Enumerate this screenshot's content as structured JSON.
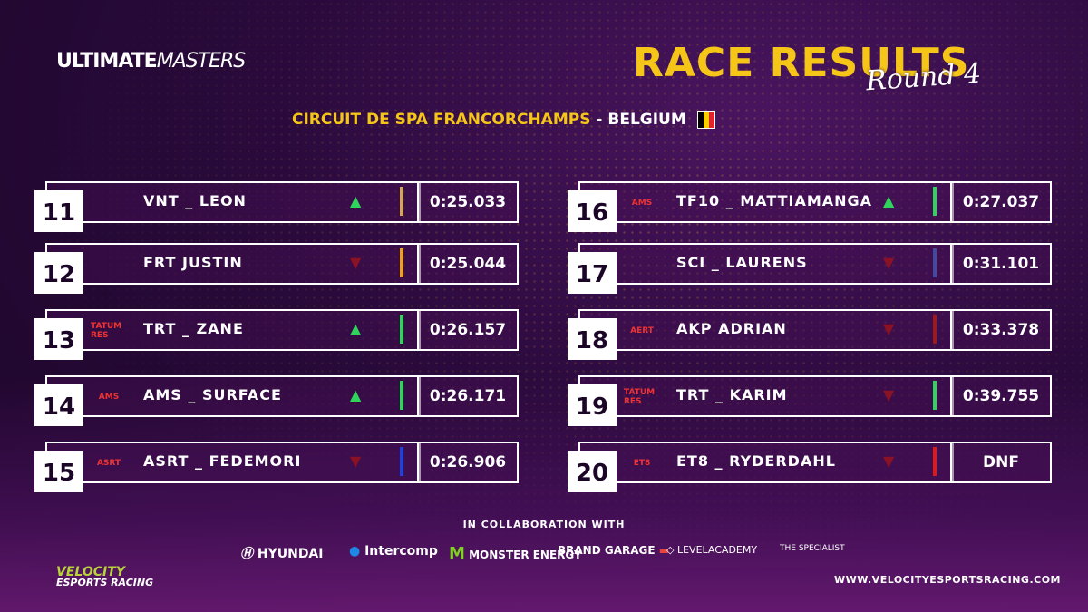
{
  "brand": {
    "logo_part1": "ULTIMATE",
    "logo_part2": "MASTERS"
  },
  "header": {
    "title": "RACE RESULTS",
    "subtitle": "Round 4",
    "circuit": "CIRCUIT DE SPA FRANCORCHAMPS",
    "separator": " - ",
    "country": "BELGIUM",
    "flag_colors": [
      "#000000",
      "#f5d000",
      "#e0242c"
    ]
  },
  "results_left": [
    {
      "pos": "11",
      "driver": "VNT _ LEON",
      "trend": "up",
      "bar": "#d4a55a",
      "time": "0:25.033",
      "logo": "vnt-bull-icon",
      "logo_text": ""
    },
    {
      "pos": "12",
      "driver": "FRT JUSTIN",
      "trend": "down",
      "bar": "#f0a020",
      "time": "0:25.044",
      "logo": "frt-lion-icon",
      "logo_text": ""
    },
    {
      "pos": "13",
      "driver": "TRT _ ZANE",
      "trend": "up",
      "bar": "#2fd45a",
      "time": "0:26.157",
      "logo": "tatum-icon",
      "logo_text": "TATUM RES"
    },
    {
      "pos": "14",
      "driver": "AMS _ SURFACE",
      "trend": "up",
      "bar": "#2fd45a",
      "time": "0:26.171",
      "logo": "ams-icon",
      "logo_text": "AMS"
    },
    {
      "pos": "15",
      "driver": "ASRT _ FEDEMORI",
      "trend": "down",
      "bar": "#2040e0",
      "time": "0:26.906",
      "logo": "asrt-shark-icon",
      "logo_text": "ASRT"
    }
  ],
  "results_right": [
    {
      "pos": "16",
      "driver": "TF10 _ MATTIAMANGA",
      "trend": "up",
      "bar": "#2fd45a",
      "time": "0:27.037",
      "logo": "ams-icon",
      "logo_text": "AMS"
    },
    {
      "pos": "17",
      "driver": "SCI _ LAURENS",
      "trend": "down",
      "bar": "#404aa0",
      "time": "0:31.101",
      "logo": "sci-wolf-icon",
      "logo_text": ""
    },
    {
      "pos": "18",
      "driver": "AKP ADRIAN",
      "trend": "down",
      "bar": "#a01818",
      "time": "0:33.378",
      "logo": "aert-icon",
      "logo_text": "AERT"
    },
    {
      "pos": "19",
      "driver": "TRT _ KARIM",
      "trend": "down",
      "bar": "#2fd45a",
      "time": "0:39.755",
      "logo": "tatum-icon",
      "logo_text": "TATUM RES"
    },
    {
      "pos": "20",
      "driver": "ET8 _ RYDERDAHL",
      "trend": "down",
      "bar": "#e01818",
      "time": "DNF",
      "logo": "et8-icon",
      "logo_text": "ET8"
    }
  ],
  "footer": {
    "collab": "IN COLLABORATION WITH",
    "sponsors": [
      "HYUNDAI",
      "Intercomp",
      "MONSTER ENERGY",
      "BRAND GARAGE",
      "LEVELACADEMY",
      "THE SPECIALIST"
    ],
    "url": "WWW.VELOCITYESPORTSRACING.COM",
    "velocity_name": "VELOCITY",
    "velocity_sub": "ESPORTS RACING"
  }
}
